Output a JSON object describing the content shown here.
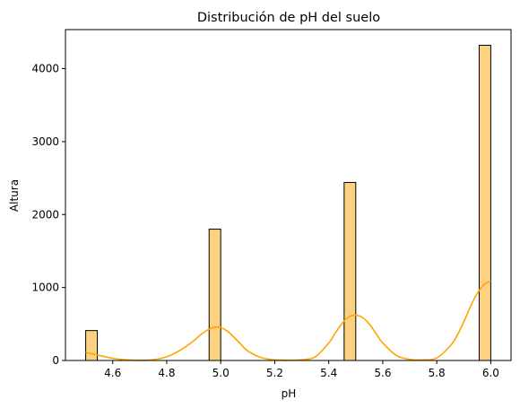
{
  "chart_data": {
    "type": "bar",
    "title": "Distribución de pH del suelo",
    "xlabel": "pH",
    "ylabel": "Altura",
    "xlim": [
      4.425,
      6.075
    ],
    "ylim": [
      0,
      4535
    ],
    "xticks": [
      4.6,
      4.8,
      5.0,
      5.2,
      5.4,
      5.6,
      5.8,
      6.0
    ],
    "xtick_labels": [
      "4.6",
      "4.8",
      "5.0",
      "5.2",
      "5.4",
      "5.6",
      "5.8",
      "6.0"
    ],
    "yticks": [
      0,
      1000,
      2000,
      3000,
      4000
    ],
    "ytick_labels": [
      "0",
      "1000",
      "2000",
      "3000",
      "4000"
    ],
    "grid": false,
    "legend": false,
    "bins": [
      {
        "x0": 4.5,
        "x1": 4.543,
        "count": 410
      },
      {
        "x0": 4.957,
        "x1": 5.0,
        "count": 1800
      },
      {
        "x0": 5.457,
        "x1": 5.5,
        "count": 2440
      },
      {
        "x0": 5.957,
        "x1": 6.0,
        "count": 4320
      }
    ],
    "kde": {
      "x": [
        4.5,
        4.55,
        4.6,
        4.65,
        4.7,
        4.75,
        4.8,
        4.85,
        4.9,
        4.925,
        4.95,
        4.975,
        5.0,
        5.025,
        5.05,
        5.075,
        5.1,
        5.15,
        5.2,
        5.25,
        5.3,
        5.35,
        5.4,
        5.425,
        5.45,
        5.475,
        5.5,
        5.525,
        5.55,
        5.575,
        5.6,
        5.65,
        5.7,
        5.75,
        5.8,
        5.85,
        5.875,
        5.9,
        5.925,
        5.95,
        5.975,
        6.0
      ],
      "y": [
        110,
        70,
        30,
        8,
        2,
        10,
        50,
        140,
        270,
        350,
        415,
        455,
        450,
        400,
        315,
        220,
        130,
        40,
        8,
        3,
        10,
        50,
        240,
        380,
        510,
        600,
        620,
        590,
        500,
        370,
        240,
        70,
        15,
        8,
        35,
        200,
        340,
        530,
        740,
        920,
        1040,
        1090
      ]
    },
    "colors": {
      "bar_fill": "#fdd182",
      "bar_edge": "#000000",
      "kde_line": "#ffa500",
      "axis": "#000000"
    }
  }
}
